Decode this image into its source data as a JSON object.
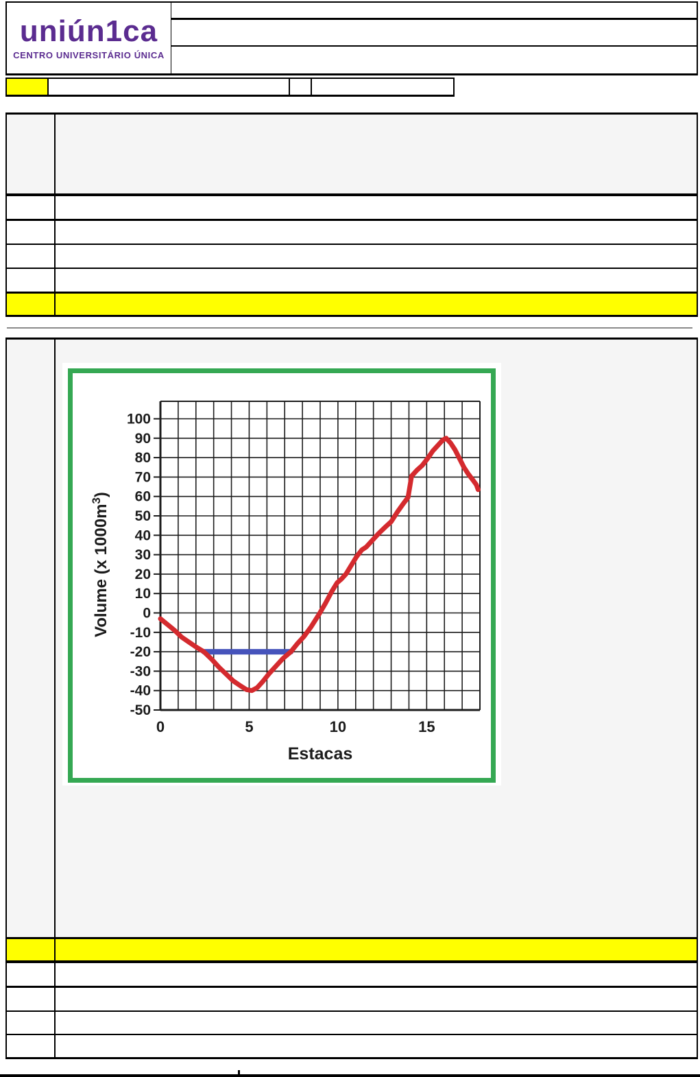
{
  "document": {
    "logo": {
      "brand": "uniún1ca",
      "subtitle": "CENTRO UNIVERSITÁRIO ÚNICA",
      "color": "#5b2c90"
    },
    "header_rows": [
      "",
      "",
      ""
    ],
    "subheader": {
      "code_cell": "",
      "field1": "",
      "field2": "",
      "field3": ""
    },
    "question_block_1": {
      "intro_row": "",
      "option_rows": [
        "",
        "",
        "",
        ""
      ],
      "highlighted_answer_row": ""
    },
    "question_block_2": {
      "body": "",
      "highlighted_answer_row": "",
      "option_rows": [
        "",
        "",
        "",
        ""
      ]
    }
  },
  "colors": {
    "highlight_yellow": "#ffff00",
    "cell_gray": "#f5f5f5",
    "border_black": "#000000",
    "divider_gray": "#8a8a8a",
    "logo_purple": "#5b2c90"
  },
  "chart_data": {
    "type": "line",
    "title": "",
    "xlabel": "Estacas",
    "ylabel": "Volume (x 1000m³)",
    "xlim": [
      0,
      18
    ],
    "ylim": [
      -50,
      100
    ],
    "x_ticks": [
      0,
      5,
      10,
      15
    ],
    "y_ticks": [
      100,
      90,
      80,
      70,
      60,
      50,
      40,
      30,
      20,
      10,
      0,
      -10,
      -20,
      -30,
      -40,
      -50
    ],
    "grid": true,
    "legend": false,
    "frame_color": "#35a853",
    "series": [
      {
        "name": "mass-diagram-curve",
        "color": "#d42a2e",
        "stroke_width": 7,
        "points": [
          [
            0,
            -3
          ],
          [
            0.4,
            -6
          ],
          [
            0.8,
            -9
          ],
          [
            1.2,
            -12.5
          ],
          [
            1.6,
            -15
          ],
          [
            2.0,
            -17.5
          ],
          [
            2.45,
            -20
          ],
          [
            2.9,
            -24
          ],
          [
            3.3,
            -28
          ],
          [
            3.7,
            -31.5
          ],
          [
            4.1,
            -35
          ],
          [
            4.5,
            -37.5
          ],
          [
            4.85,
            -39.5
          ],
          [
            5.15,
            -40
          ],
          [
            5.45,
            -38.5
          ],
          [
            5.75,
            -35.5
          ],
          [
            6.1,
            -31.5
          ],
          [
            6.5,
            -27.5
          ],
          [
            6.9,
            -23.5
          ],
          [
            7.35,
            -20
          ],
          [
            7.7,
            -16
          ],
          [
            8.1,
            -12
          ],
          [
            8.5,
            -7
          ],
          [
            8.95,
            -0.5
          ],
          [
            9.3,
            5
          ],
          [
            9.65,
            11
          ],
          [
            9.95,
            15.5
          ],
          [
            10.2,
            17.5
          ],
          [
            10.45,
            20
          ],
          [
            10.75,
            24.5
          ],
          [
            11.05,
            29
          ],
          [
            11.35,
            32.5
          ],
          [
            11.6,
            34
          ],
          [
            11.95,
            37.5
          ],
          [
            12.3,
            41
          ],
          [
            12.7,
            44.5
          ],
          [
            13.0,
            47
          ],
          [
            13.35,
            52
          ],
          [
            13.7,
            56.5
          ],
          [
            13.95,
            59.5
          ],
          [
            14.05,
            65
          ],
          [
            14.15,
            70.5
          ],
          [
            14.45,
            73.5
          ],
          [
            14.75,
            76
          ],
          [
            15.05,
            79.5
          ],
          [
            15.35,
            83.5
          ],
          [
            15.65,
            86.5
          ],
          [
            15.9,
            89
          ],
          [
            16.1,
            90
          ],
          [
            16.35,
            87.5
          ],
          [
            16.6,
            84
          ],
          [
            16.85,
            79.5
          ],
          [
            17.1,
            75
          ],
          [
            17.35,
            71.5
          ],
          [
            17.6,
            68.5
          ],
          [
            17.8,
            66
          ],
          [
            17.9,
            63.5
          ]
        ]
      },
      {
        "name": "compensation-line",
        "color": "#4653bb",
        "stroke_width": 8,
        "points": [
          [
            2.45,
            -20
          ],
          [
            7.35,
            -20
          ]
        ]
      }
    ]
  }
}
